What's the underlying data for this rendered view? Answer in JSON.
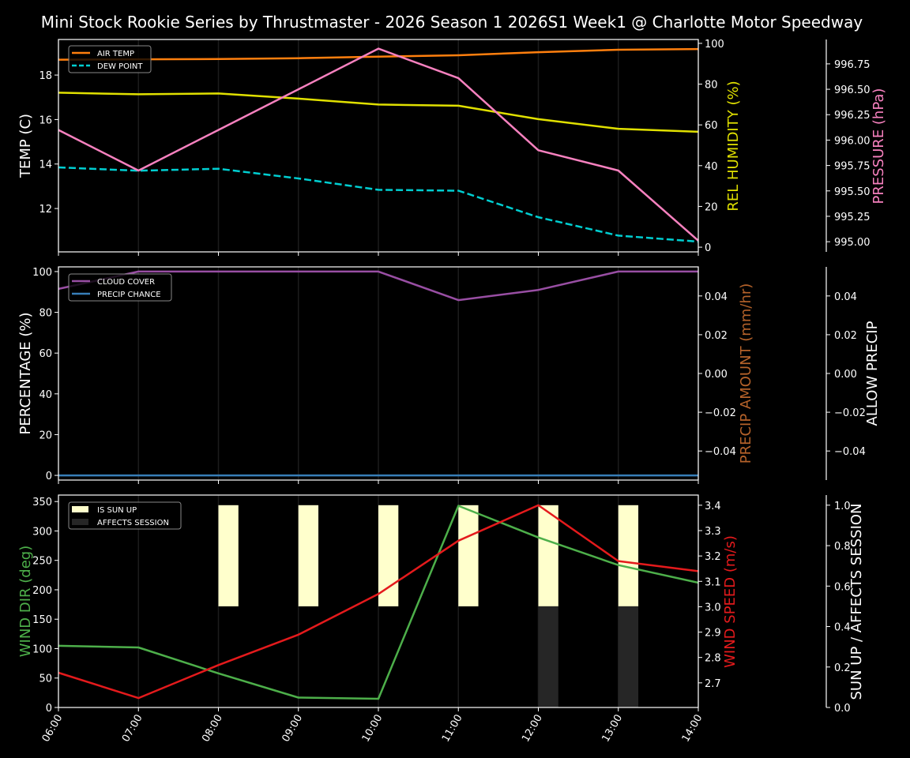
{
  "title": "Mini Stock Rookie Series by Thrustmaster - 2026 Season 1 2026S1 Week1 @ Charlotte Motor Speedway",
  "chart_data": [
    {
      "type": "line",
      "x": [
        "06:00",
        "07:00",
        "08:00",
        "09:00",
        "10:00",
        "11:00",
        "12:00",
        "13:00",
        "14:00"
      ],
      "grid": "vertical",
      "legend": {
        "placement": "top-left",
        "entries": [
          "AIR TEMP",
          "DEW POINT"
        ]
      },
      "axes": {
        "left": {
          "label": "TEMP (C)",
          "color": "#ffffff",
          "ylim": [
            10.05,
            19.6
          ],
          "ticks": [
            12,
            14,
            16,
            18
          ],
          "tick_labels": [
            "12",
            "14",
            "16",
            "18"
          ]
        },
        "right": {
          "label": "REL HUMIDITY (%)",
          "color": "#e0e000",
          "ylim": [
            -2.3,
            101.9
          ],
          "ticks": [
            0,
            20,
            40,
            60,
            80,
            100
          ],
          "tick_labels": [
            "0",
            "20",
            "40",
            "60",
            "80",
            "100"
          ]
        },
        "right2": {
          "label": "PRESSURE (hPa)",
          "color": "#f781bf",
          "ylim": [
            994.9,
            996.99
          ],
          "ticks": [
            995.0,
            995.25,
            995.5,
            995.75,
            996.0,
            996.25,
            996.5,
            996.75
          ],
          "tick_labels": [
            "995.00",
            "995.25",
            "995.50",
            "995.75",
            "996.00",
            "996.25",
            "996.50",
            "996.75"
          ]
        }
      },
      "series": [
        {
          "name": "AIR TEMP",
          "axis": "left",
          "color": "#ff7f0e",
          "dash": false,
          "values": [
            18.69,
            18.71,
            18.72,
            18.76,
            18.83,
            18.89,
            19.03,
            19.14,
            19.17
          ]
        },
        {
          "name": "DEW POINT",
          "axis": "left",
          "color": "#00ced1",
          "dash": true,
          "values": [
            13.85,
            13.7,
            13.79,
            13.35,
            12.84,
            12.8,
            11.61,
            10.78,
            10.51
          ]
        },
        {
          "axis": "right",
          "color": "#e0e000",
          "dash": false,
          "values": [
            75.8,
            75.0,
            75.4,
            72.9,
            70.0,
            69.4,
            62.8,
            58.1,
            56.6
          ]
        },
        {
          "axis": "right2",
          "color": "#f781bf",
          "dash": false,
          "values": [
            996.1,
            995.7,
            996.1,
            996.5,
            996.9,
            996.61,
            995.9,
            995.7,
            995.01
          ]
        }
      ]
    },
    {
      "type": "line",
      "x": [
        "06:00",
        "07:00",
        "08:00",
        "09:00",
        "10:00",
        "11:00",
        "12:00",
        "13:00",
        "14:00"
      ],
      "grid": "vertical",
      "legend": {
        "placement": "top-left",
        "entries": [
          "CLOUD COVER",
          "PRECIP CHANCE"
        ]
      },
      "axes": {
        "left": {
          "label": "PERCENTAGE (%)",
          "color": "#ffffff",
          "ylim": [
            -2.3,
            102.3
          ],
          "ticks": [
            0,
            20,
            40,
            60,
            80,
            100
          ],
          "tick_labels": [
            "0",
            "20",
            "40",
            "60",
            "80",
            "100"
          ]
        },
        "right": {
          "label": "PRECIP AMOUNT (mm/hr)",
          "color": "#b5622a",
          "ylim": [
            -0.055,
            0.055
          ],
          "ticks": [
            -0.04,
            -0.02,
            0,
            0.02,
            0.04
          ],
          "tick_labels": [
            "−0.04",
            "−0.02",
            "0.00",
            "0.02",
            "0.04"
          ]
        },
        "right2": {
          "label": "ALLOW PRECIP",
          "color": "#ffffff",
          "ylim": [
            -0.055,
            0.055
          ],
          "ticks": [
            -0.04,
            -0.02,
            0,
            0.02,
            0.04
          ],
          "tick_labels": [
            "−0.04",
            "−0.02",
            "0.00",
            "0.02",
            "0.04"
          ]
        }
      },
      "series": [
        {
          "name": "CLOUD COVER",
          "axis": "left",
          "color": "#984ea3",
          "dash": false,
          "values": [
            91.5,
            100,
            100,
            100,
            100,
            86,
            91,
            100,
            100
          ]
        },
        {
          "name": "PRECIP CHANCE",
          "axis": "left",
          "color": "#377eb8",
          "dash": false,
          "values": [
            0,
            0,
            0,
            0,
            0,
            0,
            0,
            0,
            0
          ]
        }
      ]
    },
    {
      "type": "line",
      "x": [
        "06:00",
        "07:00",
        "08:00",
        "09:00",
        "10:00",
        "11:00",
        "12:00",
        "13:00",
        "14:00"
      ],
      "grid": "vertical",
      "legend": {
        "placement": "top-left",
        "entries": [
          "IS SUN UP",
          "AFFECTS SESSION"
        ]
      },
      "axes": {
        "left": {
          "label": "WIND DIR (deg)",
          "color": "#4daf4a",
          "ylim": [
            0,
            361
          ],
          "ticks": [
            0,
            50,
            100,
            150,
            200,
            250,
            300,
            350
          ],
          "tick_labels": [
            "0",
            "50",
            "100",
            "150",
            "200",
            "250",
            "300",
            "350"
          ]
        },
        "right": {
          "label": "WIND SPEED (m/s)",
          "color": "#e41a1c",
          "ylim": [
            2.603,
            3.44
          ],
          "ticks": [
            2.7,
            2.8,
            2.9,
            3.0,
            3.1,
            3.2,
            3.3,
            3.4
          ],
          "tick_labels": [
            "2.7",
            "2.8",
            "2.9",
            "3.0",
            "3.1",
            "3.2",
            "3.3",
            "3.4"
          ]
        },
        "right2": {
          "label": "SUN UP / AFFECTS SESSION",
          "color": "#ffffff",
          "ylim": [
            0,
            1.05
          ],
          "ticks": [
            0,
            0.2,
            0.4,
            0.6,
            0.8,
            1.0
          ],
          "tick_labels": [
            "0.0",
            "0.2",
            "0.4",
            "0.6",
            "0.8",
            "1.0"
          ]
        }
      },
      "bars": [
        {
          "name": "IS SUN UP",
          "axis": "right2",
          "color": "#ffffcc",
          "bottom": 0.5,
          "values": [
            0,
            0,
            0.5,
            0.5,
            0.5,
            0.5,
            0.5,
            0.5,
            0
          ]
        },
        {
          "name": "AFFECTS SESSION",
          "axis": "right2",
          "color": "#262626",
          "bottom": 0,
          "values": [
            0,
            0,
            0,
            0,
            0,
            0,
            0.5,
            0.5,
            0
          ]
        }
      ],
      "series": [
        {
          "axis": "left",
          "color": "#4daf4a",
          "dash": false,
          "values": [
            104.8,
            102,
            58,
            16.8,
            14.8,
            342.7,
            289,
            242,
            212
          ]
        },
        {
          "axis": "right",
          "color": "#e41a1c",
          "dash": false,
          "values": [
            2.74,
            2.64,
            2.77,
            2.89,
            3.05,
            3.26,
            3.4,
            3.18,
            3.14
          ]
        }
      ]
    }
  ]
}
